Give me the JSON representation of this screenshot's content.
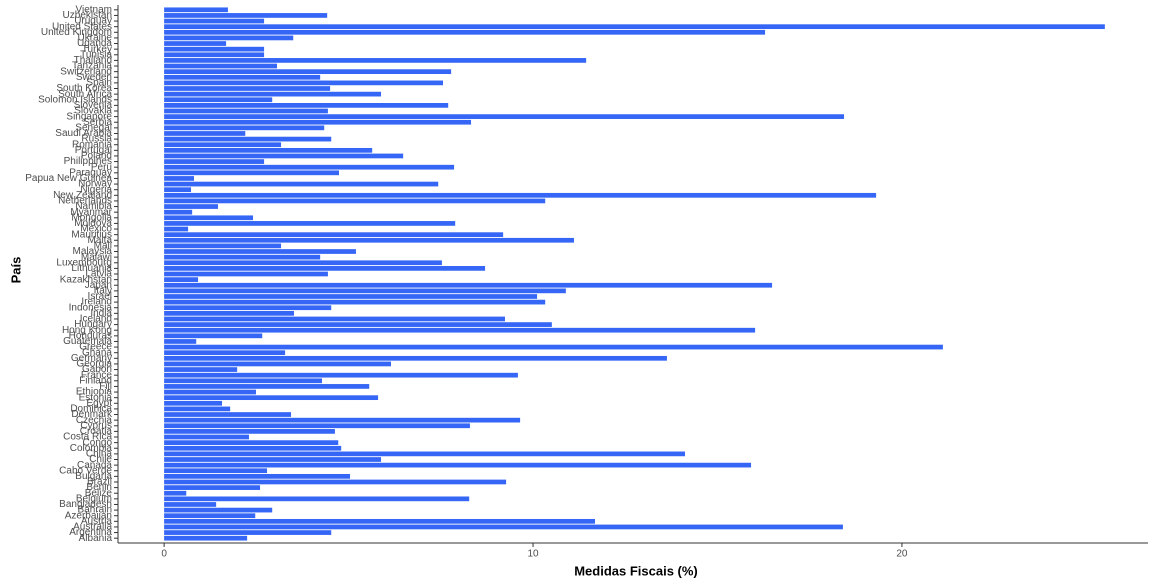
{
  "chart_data": {
    "type": "bar",
    "orientation": "horizontal",
    "x_label": "Medidas Fiscais (%)",
    "y_label": "País",
    "categories": [
      "Albania",
      "Argentina",
      "Australia",
      "Austria",
      "Azerbaijan",
      "Bahrain",
      "Bangladesh",
      "Belgium",
      "Belize",
      "Benin",
      "Brazil",
      "Bulgaria",
      "Cabo Verde",
      "Canada",
      "Chile",
      "China",
      "Colombia",
      "Congo",
      "Costa Rica",
      "Croatia",
      "Cyprus",
      "Czechia",
      "Denmark",
      "Dominica",
      "Egypt",
      "Estonia",
      "Ethiopia",
      "Fiji",
      "Finland",
      "France",
      "Gabon",
      "Georgia",
      "Germany",
      "Ghana",
      "Greece",
      "Guatemala",
      "Honduras",
      "Hong Kong",
      "Hungary",
      "Iceland",
      "India",
      "Indonesia",
      "Ireland",
      "Israel",
      "Italy",
      "Japan",
      "Kazakhstan",
      "Latvia",
      "Lithuania",
      "Luxembourg",
      "Malawi",
      "Malaysia",
      "Mali",
      "Malta",
      "Mauritius",
      "Mexico",
      "Moldova",
      "Mongolia",
      "Myanmar",
      "Namibia",
      "Netherlands",
      "New Zealand",
      "Nigeria",
      "Norway",
      "Papua New Guinea",
      "Paraguay",
      "Peru",
      "Philippines",
      "Poland",
      "Portugal",
      "Romania",
      "Russia",
      "Saudi Arabia",
      "Senegal",
      "Serbia",
      "Singapore",
      "Slovakia",
      "Slovenia",
      "Solomon Islands",
      "South Africa",
      "South Korea",
      "Spain",
      "Sweden",
      "Switzerland",
      "Tanzania",
      "Thailand",
      "Tunisia",
      "Turkey",
      "Uganda",
      "Ukraine",
      "United Kingdom",
      "United States",
      "Uruguay",
      "Uzbekistan",
      "Vietnam"
    ],
    "values": [
      2.25,
      4.53,
      18.4,
      11.68,
      2.47,
      2.93,
      1.41,
      8.27,
      0.6,
      2.6,
      9.27,
      5.04,
      2.79,
      15.91,
      5.88,
      14.12,
      4.8,
      4.72,
      2.3,
      4.63,
      8.29,
      9.65,
      3.44,
      1.79,
      1.57,
      5.8,
      2.49,
      5.56,
      4.28,
      9.59,
      1.98,
      6.15,
      13.63,
      3.28,
      21.11,
      0.87,
      2.66,
      16.02,
      10.51,
      9.24,
      3.52,
      4.53,
      10.33,
      10.11,
      10.89,
      16.48,
      0.92,
      4.44,
      8.7,
      7.53,
      4.23,
      5.2,
      3.17,
      11.11,
      9.19,
      0.65,
      7.89,
      2.41,
      0.76,
      1.46,
      10.33,
      19.3,
      0.73,
      7.43,
      0.81,
      4.74,
      7.86,
      2.71,
      6.48,
      5.64,
      3.17,
      4.53,
      2.2,
      4.34,
      8.32,
      18.43,
      4.44,
      7.7,
      2.93,
      5.88,
      4.5,
      7.56,
      4.23,
      7.78,
      3.06,
      11.44,
      2.71,
      2.71,
      1.68,
      3.5,
      16.29,
      25.5,
      2.71,
      4.42,
      1.73
    ],
    "color": "#3566f5",
    "xlim": [
      -1.25,
      26.67
    ],
    "xticks": [
      0,
      10,
      20
    ],
    "grid": false
  }
}
